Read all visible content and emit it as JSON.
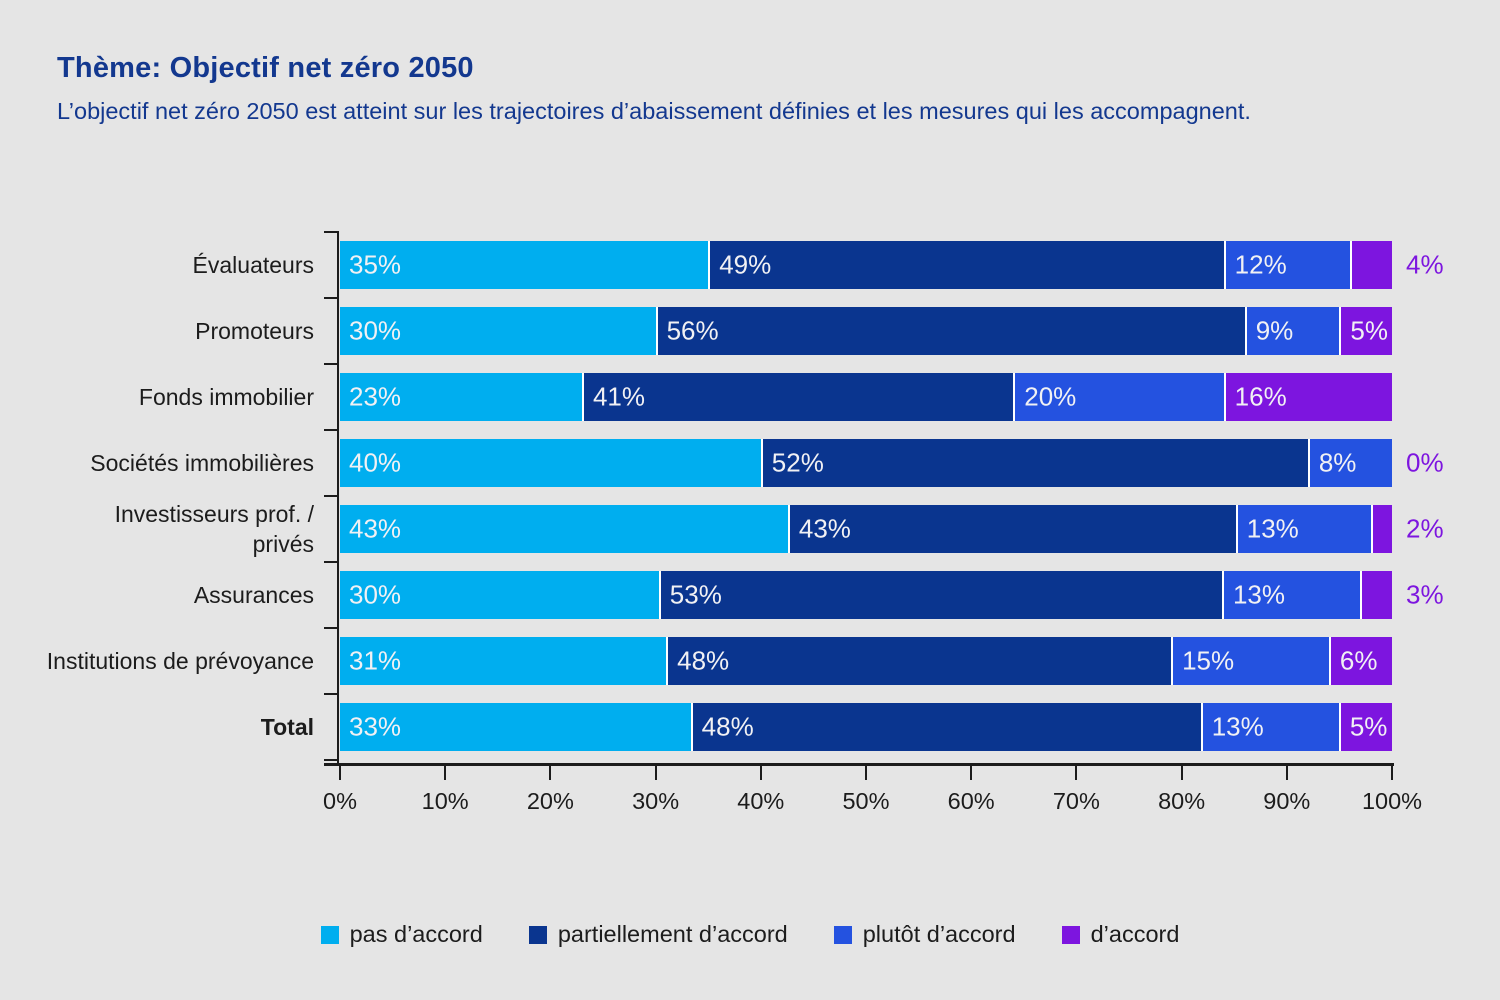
{
  "chart_data": {
    "type": "bar",
    "stacked": true,
    "orientation": "horizontal",
    "title": "Thème: Objectif net zéro 2050",
    "subtitle": "L’objectif net zéro 2050 est atteint sur les trajectoires d’abaissement définies et les mesures qui les accompagnent.",
    "categories": [
      "Évaluateurs",
      "Promoteurs",
      "Fonds immobilier",
      "Sociétés immobilières",
      "Investisseurs prof. /\nprivés",
      "Assurances",
      "Institutions de prévoyance",
      "Total"
    ],
    "bold_categories": [
      "Total"
    ],
    "series": [
      {
        "name": "pas d’accord",
        "slug": "pas-daccord",
        "color": "#00AEEF",
        "values": [
          35,
          30,
          23,
          40,
          43,
          30,
          31,
          33
        ]
      },
      {
        "name": "partiellement d’accord",
        "slug": "partiellement-daccord",
        "color": "#0A358F",
        "values": [
          49,
          56,
          41,
          52,
          43,
          53,
          48,
          48
        ]
      },
      {
        "name": "plutôt d’accord",
        "slug": "plutot-daccord",
        "color": "#2452E0",
        "values": [
          12,
          9,
          20,
          8,
          13,
          13,
          15,
          13
        ]
      },
      {
        "name": "d’accord",
        "slug": "daccord",
        "color": "#7D15DF",
        "values": [
          4,
          5,
          16,
          0,
          2,
          3,
          6,
          5
        ]
      }
    ],
    "value_suffix": "%",
    "xlim": [
      0,
      100
    ],
    "x_tick_labels": [
      "0%",
      "10%",
      "20%",
      "30%",
      "40%",
      "50%",
      "60%",
      "70%",
      "80%",
      "90%",
      "100%"
    ],
    "grid": false,
    "legend_position": "bottom",
    "outside_label_min_value": 5,
    "styles": {
      "background": "#E5E5E5",
      "title_color": "#13388F",
      "axis_color": "#1C1C1C",
      "bar_label_color": "#F1F1F4",
      "outside_label_color": "#7D15DF",
      "separator_color": "#FFFFFF"
    }
  }
}
